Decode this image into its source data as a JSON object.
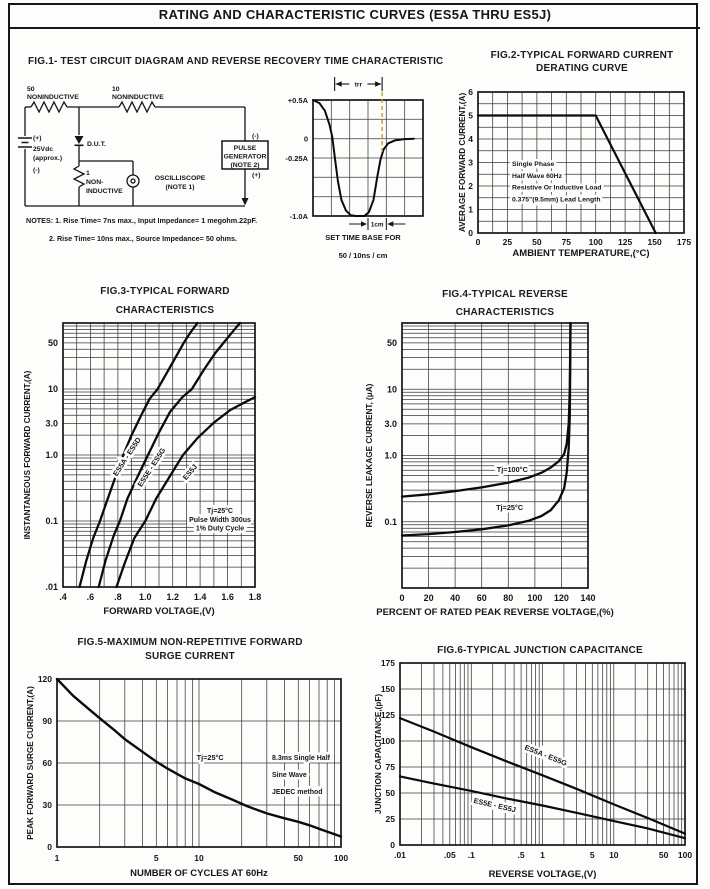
{
  "page": {
    "title": "RATING AND CHARACTERISTIC CURVES (ES5A THRU ES5J)"
  },
  "fig1": {
    "circuit": {
      "r1_value": "50",
      "r1_type": "NONINDUCTIVE",
      "r2_value": "10",
      "r2_type": "NONINDUCTIVE",
      "src_plus": "(+)",
      "src_value": "25Vdc",
      "src_approx": "(approx.)",
      "src_minus": "(-)",
      "dut": "D.U.T.",
      "r3_value": "1",
      "r3_line1": "NON-",
      "r3_line2": "INDUCTIVE",
      "scope_line1": "OSCILLISCOPE",
      "scope_line2": "(NOTE 1)",
      "pg_line1": "PULSE",
      "pg_line2": "GENERATOR",
      "pg_line3": "(NOTE 2)",
      "pg_minus": "(-)",
      "pg_plus": "(+)",
      "note1": "NOTES: 1. Rise Time= 7ns max., Input Impedance= 1 megohm.22pF.",
      "note2": "2. Rise Time= 10ns max., Source Impedance= 50 ohms."
    }
  },
  "colors": {
    "ink": "#161616",
    "grid": "#3a3a3a",
    "dashed_marker": "#c99b2d"
  },
  "chart_data": [
    {
      "id": "waveform",
      "type": "line",
      "title": "FIG.1- TEST CIRCUIT DIAGRAM AND REVERSE RECOVERY TIME CHARACTERISTIC",
      "xlim": [
        0,
        6
      ],
      "ylim": [
        -1,
        0.5
      ],
      "xgrid_step": 1,
      "ygrid_step": 0.25,
      "xticks": [],
      "yticks": [
        {
          "v": 0.5,
          "label": "+0.5A"
        },
        {
          "v": 0,
          "label": "0"
        },
        {
          "v": -0.25,
          "label": "-0.25A"
        },
        {
          "v": -1,
          "label": "-1.0A"
        }
      ],
      "series": [
        {
          "name": "reverse-recovery-current",
          "points": [
            [
              0,
              0.5
            ],
            [
              0.35,
              0.46
            ],
            [
              0.65,
              0.36
            ],
            [
              0.9,
              0.18
            ],
            [
              1.05,
              0.02
            ],
            [
              1.18,
              -0.22
            ],
            [
              1.35,
              -0.54
            ],
            [
              1.55,
              -0.79
            ],
            [
              1.8,
              -0.93
            ],
            [
              2.05,
              -0.99
            ],
            [
              2.35,
              -1
            ],
            [
              2.8,
              -1
            ],
            [
              3.05,
              -0.95
            ],
            [
              3.3,
              -0.79
            ],
            [
              3.5,
              -0.5
            ],
            [
              3.68,
              -0.27
            ],
            [
              3.85,
              -0.14
            ],
            [
              4.1,
              -0.06
            ],
            [
              4.5,
              -0.02
            ],
            [
              5,
              -0.005
            ],
            [
              5.5,
              0
            ]
          ]
        }
      ],
      "annotations": {
        "trr_label": "trr",
        "cm_label": "1cm"
      },
      "caption_line1": "SET TIME BASE FOR",
      "caption_line2": "50 / 10ns / cm"
    },
    {
      "id": "fig2",
      "type": "line",
      "title": [
        "FIG.2-TYPICAL FORWARD CURRENT",
        "DERATING CURVE"
      ],
      "xlabel": "AMBIENT TEMPERATURE,(°C)",
      "ylabel": "AVERAGE FORWARD CURRENT,(A)",
      "xlim": [
        0,
        175
      ],
      "ylim": [
        0,
        6
      ],
      "xgrid_step": 12.5,
      "ygrid_step": 0.5,
      "xticks": [
        {
          "v": 0,
          "label": "0"
        },
        {
          "v": 25,
          "label": "25"
        },
        {
          "v": 50,
          "label": "50"
        },
        {
          "v": 75,
          "label": "75"
        },
        {
          "v": 100,
          "label": "100"
        },
        {
          "v": 125,
          "label": "125"
        },
        {
          "v": 150,
          "label": "150"
        },
        {
          "v": 175,
          "label": "175"
        }
      ],
      "yticks": [
        {
          "v": 0,
          "label": "0"
        },
        {
          "v": 1,
          "label": "1"
        },
        {
          "v": 2,
          "label": "2"
        },
        {
          "v": 3,
          "label": "3"
        },
        {
          "v": 4,
          "label": "4"
        },
        {
          "v": 5,
          "label": "5"
        },
        {
          "v": 6,
          "label": "6"
        }
      ],
      "series": [
        {
          "name": "derating",
          "points": [
            [
              0,
              5
            ],
            [
              100,
              5
            ],
            [
              151,
              0
            ]
          ]
        }
      ],
      "note_lines": [
        "Single Phase",
        "Half Wave 60Hz",
        "Resistive Or Inductive Load",
        "0.375\"(9.5mm) Lead Length"
      ]
    },
    {
      "id": "fig3",
      "type": "line",
      "title": [
        "FIG.3-TYPICAL FORWARD",
        "CHARACTERISTICS"
      ],
      "xlabel": "FORWARD VOLTAGE,(V)",
      "ylabel": "INSTANTANEOUS FORWARD CURRENT,(A)",
      "xlim": [
        0.4,
        1.8
      ],
      "ylim": [
        0.01,
        100
      ],
      "ylog": true,
      "xgrid_step": 0.1,
      "xticks": [
        {
          "v": 0.4,
          "label": ".4"
        },
        {
          "v": 0.6,
          "label": ".6"
        },
        {
          "v": 0.8,
          "label": ".8"
        },
        {
          "v": 1.0,
          "label": "1.0"
        },
        {
          "v": 1.2,
          "label": "1.2"
        },
        {
          "v": 1.4,
          "label": "1.4"
        },
        {
          "v": 1.6,
          "label": "1.6"
        },
        {
          "v": 1.8,
          "label": "1.8"
        }
      ],
      "yticks": [
        {
          "v": 50,
          "label": "50"
        },
        {
          "v": 10,
          "label": "10"
        },
        {
          "v": 3,
          "label": "3.0"
        },
        {
          "v": 1,
          "label": "1.0"
        },
        {
          "v": 0.1,
          "label": "0.1"
        },
        {
          "v": 0.01,
          "label": ".01"
        }
      ],
      "series": [
        {
          "name": "ES5A - ES5D",
          "points": [
            [
              0.52,
              0.01
            ],
            [
              0.57,
              0.025
            ],
            [
              0.62,
              0.055
            ],
            [
              0.67,
              0.1
            ],
            [
              0.72,
              0.2
            ],
            [
              0.78,
              0.45
            ],
            [
              0.84,
              1
            ],
            [
              0.9,
              2
            ],
            [
              0.97,
              4
            ],
            [
              1.03,
              7
            ],
            [
              1.09,
              10
            ],
            [
              1.16,
              18
            ],
            [
              1.22,
              30
            ],
            [
              1.28,
              50
            ],
            [
              1.33,
              72
            ],
            [
              1.38,
              100
            ]
          ]
        },
        {
          "name": "ES5E - ES5G",
          "points": [
            [
              0.66,
              0.01
            ],
            [
              0.71,
              0.025
            ],
            [
              0.77,
              0.06
            ],
            [
              0.815,
              0.1
            ],
            [
              0.87,
              0.22
            ],
            [
              0.95,
              0.5
            ],
            [
              1.02,
              1
            ],
            [
              1.1,
              2.2
            ],
            [
              1.18,
              4.5
            ],
            [
              1.27,
              7.5
            ],
            [
              1.34,
              10
            ],
            [
              1.43,
              20
            ],
            [
              1.51,
              35
            ],
            [
              1.57,
              50
            ],
            [
              1.64,
              75
            ],
            [
              1.69,
              100
            ]
          ]
        },
        {
          "name": "ES5J",
          "points": [
            [
              0.79,
              0.01
            ],
            [
              0.85,
              0.023
            ],
            [
              0.92,
              0.055
            ],
            [
              1.0,
              0.1
            ],
            [
              1.08,
              0.22
            ],
            [
              1.18,
              0.48
            ],
            [
              1.275,
              1
            ],
            [
              1.38,
              1.8
            ],
            [
              1.5,
              3.1
            ],
            [
              1.62,
              4.8
            ],
            [
              1.72,
              6.2
            ],
            [
              1.8,
              7.5
            ]
          ]
        }
      ],
      "note_lines": [
        "Tj=25°C",
        "Pulse Width 300us",
        "1% Duty Cycle"
      ]
    },
    {
      "id": "fig4",
      "type": "line",
      "title": [
        "FIG.4-TYPICAL REVERSE",
        "CHARACTERISTICS"
      ],
      "xlabel": "PERCENT OF RATED PEAK REVERSE VOLTAGE,(%)",
      "ylabel": "REVERSE LEAKAGE CURRENT, (μA)",
      "xlim": [
        0,
        140
      ],
      "ylim": [
        0.01,
        100
      ],
      "ylog": true,
      "xgrid_step": 20,
      "xticks": [
        {
          "v": 0,
          "label": "0"
        },
        {
          "v": 20,
          "label": "20"
        },
        {
          "v": 40,
          "label": "40"
        },
        {
          "v": 60,
          "label": "60"
        },
        {
          "v": 80,
          "label": "80"
        },
        {
          "v": 100,
          "label": "100"
        },
        {
          "v": 120,
          "label": "120"
        },
        {
          "v": 140,
          "label": "140"
        }
      ],
      "yticks": [
        {
          "v": 50,
          "label": "50"
        },
        {
          "v": 10,
          "label": "10"
        },
        {
          "v": 3,
          "label": "3.0"
        },
        {
          "v": 1,
          "label": "1.0"
        },
        {
          "v": 0.1,
          "label": "0.1"
        }
      ],
      "series": [
        {
          "name": "Tj=100°C",
          "points": [
            [
              0,
              0.24
            ],
            [
              20,
              0.26
            ],
            [
              40,
              0.29
            ],
            [
              60,
              0.33
            ],
            [
              80,
              0.39
            ],
            [
              95,
              0.46
            ],
            [
              105,
              0.55
            ],
            [
              112,
              0.66
            ],
            [
              118,
              0.82
            ],
            [
              122,
              1.05
            ],
            [
              124,
              1.5
            ],
            [
              125.5,
              3
            ],
            [
              126.3,
              10
            ],
            [
              126.8,
              100
            ]
          ]
        },
        {
          "name": "Tj=25°C",
          "points": [
            [
              0,
              0.062
            ],
            [
              20,
              0.065
            ],
            [
              40,
              0.07
            ],
            [
              60,
              0.077
            ],
            [
              80,
              0.088
            ],
            [
              95,
              0.103
            ],
            [
              105,
              0.122
            ],
            [
              112,
              0.15
            ],
            [
              118,
              0.21
            ],
            [
              122,
              0.32
            ],
            [
              124,
              0.55
            ],
            [
              125.5,
              1.3
            ],
            [
              126.3,
              4
            ],
            [
              126.8,
              100
            ]
          ]
        }
      ]
    },
    {
      "id": "fig5",
      "type": "line",
      "title": [
        "FIG.5-MAXIMUM NON-REPETITIVE FORWARD",
        "SURGE CURRENT"
      ],
      "xlabel": "NUMBER OF CYCLES AT 60Hz",
      "ylabel": "PEAK FORWARD SURGE CURRENT,(A)",
      "xlim": [
        1,
        100
      ],
      "xlog": true,
      "ylim": [
        0,
        120
      ],
      "ygrid_step": 30,
      "xticks": [
        {
          "v": 1,
          "label": "1"
        },
        {
          "v": 5,
          "label": "5"
        },
        {
          "v": 10,
          "label": "10"
        },
        {
          "v": 50,
          "label": "50"
        },
        {
          "v": 100,
          "label": "100"
        }
      ],
      "yticks": [
        {
          "v": 0,
          "label": "0"
        },
        {
          "v": 30,
          "label": "30"
        },
        {
          "v": 60,
          "label": "60"
        },
        {
          "v": 90,
          "label": "90"
        },
        {
          "v": 120,
          "label": "120"
        }
      ],
      "series": [
        {
          "name": "surge-current",
          "points": [
            [
              1,
              120
            ],
            [
              1.3,
              108
            ],
            [
              1.7,
              98
            ],
            [
              2,
              92
            ],
            [
              2.5,
              84
            ],
            [
              3,
              77
            ],
            [
              4,
              68
            ],
            [
              5,
              61
            ],
            [
              6,
              56
            ],
            [
              8,
              49
            ],
            [
              10,
              45
            ],
            [
              13,
              39
            ],
            [
              17,
              34
            ],
            [
              22,
              29
            ],
            [
              30,
              24
            ],
            [
              40,
              20.5
            ],
            [
              50,
              18
            ],
            [
              60,
              15.5
            ],
            [
              70,
              13
            ],
            [
              85,
              10
            ],
            [
              100,
              7.5
            ]
          ]
        }
      ],
      "labels": [
        "Tj=25°C"
      ],
      "note_lines": [
        "8.3ms Single Half",
        "Sine Wave",
        "JEDEC method"
      ]
    },
    {
      "id": "fig6",
      "type": "line",
      "title": [
        "FIG.6-TYPICAL JUNCTION CAPACITANCE"
      ],
      "xlabel": "REVERSE VOLTAGE,(V)",
      "ylabel": "JUNCTION CAPACITANCE,(pF)",
      "xlim": [
        0.01,
        100
      ],
      "xlog": true,
      "ylim": [
        0,
        175
      ],
      "ygrid_step": 25,
      "xticks": [
        {
          "v": 0.01,
          "label": ".01"
        },
        {
          "v": 0.05,
          "label": ".05"
        },
        {
          "v": 0.1,
          "label": ".1"
        },
        {
          "v": 0.5,
          "label": ".5"
        },
        {
          "v": 1,
          "label": "1"
        },
        {
          "v": 5,
          "label": "5"
        },
        {
          "v": 10,
          "label": "10"
        },
        {
          "v": 50,
          "label": "50"
        },
        {
          "v": 100,
          "label": "100"
        }
      ],
      "yticks": [
        {
          "v": 0,
          "label": "0"
        },
        {
          "v": 25,
          "label": "25"
        },
        {
          "v": 50,
          "label": "50"
        },
        {
          "v": 75,
          "label": "75"
        },
        {
          "v": 100,
          "label": "100"
        },
        {
          "v": 125,
          "label": "125"
        },
        {
          "v": 150,
          "label": "150"
        },
        {
          "v": 175,
          "label": "175"
        }
      ],
      "series": [
        {
          "name": "ES5A - ES5G",
          "points": [
            [
              0.01,
              122
            ],
            [
              0.03,
              109
            ],
            [
              0.1,
              94
            ],
            [
              0.3,
              81
            ],
            [
              1,
              67
            ],
            [
              3,
              54
            ],
            [
              10,
              39
            ],
            [
              30,
              26
            ],
            [
              100,
              11
            ]
          ]
        },
        {
          "name": "ES5E - ES5J",
          "points": [
            [
              0.01,
              66
            ],
            [
              0.03,
              59
            ],
            [
              0.1,
              52
            ],
            [
              0.3,
              45
            ],
            [
              1,
              38
            ],
            [
              3,
              31
            ],
            [
              10,
              23
            ],
            [
              30,
              16
            ],
            [
              100,
              6.5
            ]
          ]
        }
      ]
    }
  ]
}
